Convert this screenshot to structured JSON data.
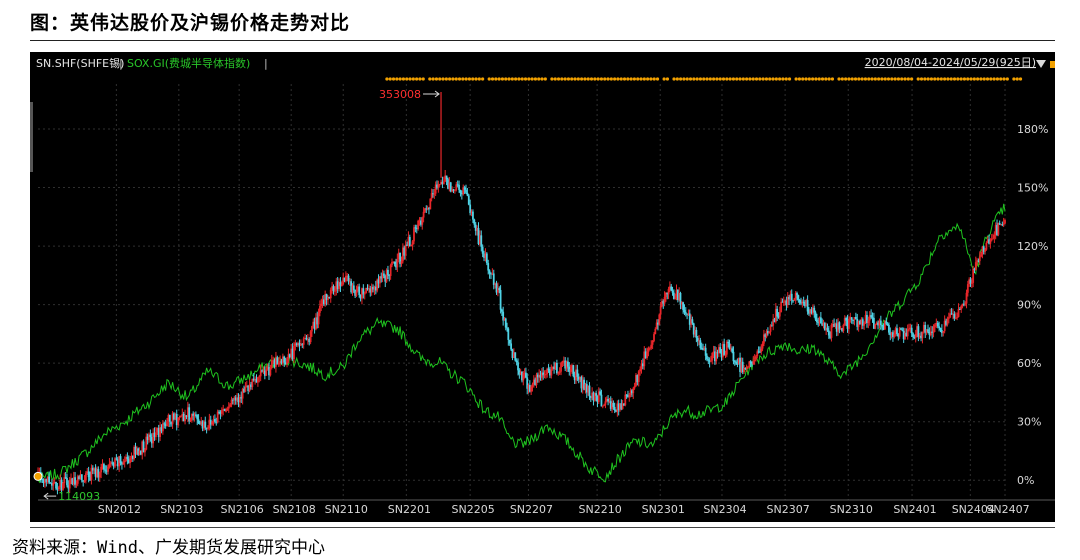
{
  "figure": {
    "title": "图：英伟达股价及沪锡价格走势对比",
    "source": "资料来源：Wind、广发期货发展研究中心"
  },
  "colors": {
    "background": "#000000",
    "grid": "#2f2f2f",
    "tin_up": "#e8262a",
    "tin_down": "#4fd3e6",
    "sox_line": "#1fc21f",
    "marker": "#f2a100"
  },
  "chart_data": {
    "type": "line",
    "legend": {
      "series_a": "SN.SHF(SHFE锡)",
      "separator": "|",
      "series_b": "SOX.GI(费城半导体指数)",
      "trailing": "|"
    },
    "date_range": "2020/08/04-2024/05/29(925日)",
    "y_unit": "%",
    "ylim": [
      -5,
      200
    ],
    "y_ticks": [
      "180%",
      "150%",
      "120%",
      "90%",
      "60%",
      "30%",
      "0%"
    ],
    "y_tick_values": [
      180,
      150,
      120,
      90,
      60,
      30,
      0
    ],
    "x_ticks": [
      "SN2012",
      "SN2103",
      "SN2106",
      "SN2108",
      "SN2110",
      "SN2201",
      "SN2205",
      "SN2207",
      "SN2210",
      "SN2301",
      "SN2304",
      "SN2307",
      "SN2310",
      "SN2401",
      "SN2404",
      "SN2407"
    ],
    "x_tick_dates": [
      "2020-11-25",
      "2021-02-23",
      "2021-05-21",
      "2021-08-04",
      "2021-10-18",
      "2022-01-17",
      "2022-04-19",
      "2022-07-12",
      "2022-10-19",
      "2023-01-18",
      "2023-04-17",
      "2023-07-17",
      "2023-10-16",
      "2024-01-16",
      "2024-04-09",
      "2024-05-29"
    ],
    "max_annotation": "353008",
    "max_annotation_date": "2022-03-08",
    "min_annotation": "114093",
    "min_annotation_date": "2020-08-10",
    "series": [
      {
        "name": "SN.SHF(SHFE锡)",
        "kind": "candlestick",
        "points": [
          [
            "2020-08-04",
            2
          ],
          [
            "2020-09-07",
            -2
          ],
          [
            "2020-10-12",
            2
          ],
          [
            "2020-11-09",
            6
          ],
          [
            "2020-12-07",
            10
          ],
          [
            "2021-01-11",
            20
          ],
          [
            "2021-02-08",
            30
          ],
          [
            "2021-03-08",
            34
          ],
          [
            "2021-04-06",
            28
          ],
          [
            "2021-05-06",
            40
          ],
          [
            "2021-06-07",
            48
          ],
          [
            "2021-07-05",
            58
          ],
          [
            "2021-08-02",
            64
          ],
          [
            "2021-09-01",
            75
          ],
          [
            "2021-09-22",
            93
          ],
          [
            "2021-10-18",
            104
          ],
          [
            "2021-11-08",
            96
          ],
          [
            "2021-12-06",
            100
          ],
          [
            "2022-01-04",
            112
          ],
          [
            "2022-02-07",
            132
          ],
          [
            "2022-03-08",
            155
          ],
          [
            "2022-03-18",
            152
          ],
          [
            "2022-04-11",
            148
          ],
          [
            "2022-05-09",
            115
          ],
          [
            "2022-05-31",
            94
          ],
          [
            "2022-06-13",
            72
          ],
          [
            "2022-06-27",
            58
          ],
          [
            "2022-07-14",
            48
          ],
          [
            "2022-08-08",
            56
          ],
          [
            "2022-09-05",
            60
          ],
          [
            "2022-10-08",
            45
          ],
          [
            "2022-10-31",
            40
          ],
          [
            "2022-11-21",
            36
          ],
          [
            "2022-12-12",
            50
          ],
          [
            "2023-01-09",
            75
          ],
          [
            "2023-01-30",
            100
          ],
          [
            "2023-02-20",
            90
          ],
          [
            "2023-03-13",
            70
          ],
          [
            "2023-04-03",
            62
          ],
          [
            "2023-04-24",
            68
          ],
          [
            "2023-05-15",
            58
          ],
          [
            "2023-06-05",
            62
          ],
          [
            "2023-06-26",
            80
          ],
          [
            "2023-07-17",
            92
          ],
          [
            "2023-08-07",
            94
          ],
          [
            "2023-08-28",
            84
          ],
          [
            "2023-09-18",
            76
          ],
          [
            "2023-10-09",
            80
          ],
          [
            "2023-11-06",
            82
          ],
          [
            "2023-12-04",
            80
          ],
          [
            "2024-01-02",
            74
          ],
          [
            "2024-01-29",
            76
          ],
          [
            "2024-02-26",
            78
          ],
          [
            "2024-03-25",
            86
          ],
          [
            "2024-04-15",
            108
          ],
          [
            "2024-05-06",
            124
          ],
          [
            "2024-05-29",
            132
          ]
        ]
      },
      {
        "name": "SOX.GI(费城半导体指数)",
        "kind": "line",
        "points": [
          [
            "2020-08-04",
            0
          ],
          [
            "2020-09-07",
            4
          ],
          [
            "2020-10-12",
            14
          ],
          [
            "2020-11-09",
            24
          ],
          [
            "2020-12-07",
            30
          ],
          [
            "2021-01-11",
            40
          ],
          [
            "2021-02-08",
            50
          ],
          [
            "2021-03-08",
            42
          ],
          [
            "2021-04-06",
            56
          ],
          [
            "2021-05-06",
            48
          ],
          [
            "2021-06-07",
            54
          ],
          [
            "2021-07-05",
            60
          ],
          [
            "2021-08-02",
            62
          ],
          [
            "2021-09-01",
            58
          ],
          [
            "2021-09-22",
            54
          ],
          [
            "2021-10-18",
            58
          ],
          [
            "2021-11-08",
            72
          ],
          [
            "2021-12-06",
            80
          ],
          [
            "2022-01-04",
            78
          ],
          [
            "2022-02-07",
            62
          ],
          [
            "2022-03-08",
            60
          ],
          [
            "2022-03-18",
            56
          ],
          [
            "2022-04-11",
            50
          ],
          [
            "2022-05-09",
            36
          ],
          [
            "2022-05-31",
            32
          ],
          [
            "2022-06-13",
            22
          ],
          [
            "2022-06-27",
            18
          ],
          [
            "2022-07-14",
            20
          ],
          [
            "2022-08-08",
            28
          ],
          [
            "2022-09-05",
            20
          ],
          [
            "2022-10-08",
            6
          ],
          [
            "2022-10-31",
            2
          ],
          [
            "2022-11-21",
            12
          ],
          [
            "2022-12-12",
            20
          ],
          [
            "2023-01-09",
            18
          ],
          [
            "2023-01-30",
            30
          ],
          [
            "2023-02-20",
            36
          ],
          [
            "2023-03-13",
            34
          ],
          [
            "2023-04-03",
            36
          ],
          [
            "2023-04-24",
            40
          ],
          [
            "2023-05-15",
            52
          ],
          [
            "2023-06-05",
            62
          ],
          [
            "2023-06-26",
            66
          ],
          [
            "2023-07-17",
            70
          ],
          [
            "2023-08-07",
            66
          ],
          [
            "2023-08-28",
            68
          ],
          [
            "2023-09-18",
            60
          ],
          [
            "2023-10-09",
            54
          ],
          [
            "2023-11-06",
            64
          ],
          [
            "2023-12-04",
            80
          ],
          [
            "2024-01-02",
            92
          ],
          [
            "2024-01-29",
            104
          ],
          [
            "2024-02-26",
            126
          ],
          [
            "2024-03-25",
            130
          ],
          [
            "2024-04-15",
            106
          ],
          [
            "2024-05-06",
            128
          ],
          [
            "2024-05-29",
            140
          ]
        ]
      }
    ]
  }
}
